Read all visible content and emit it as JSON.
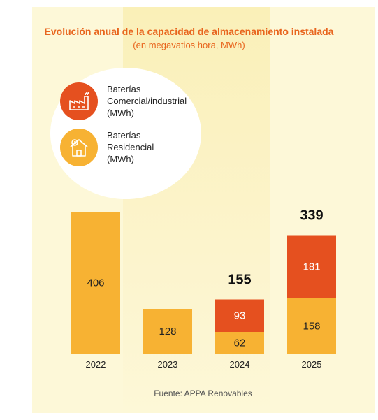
{
  "header": {
    "title": "Evolución anual de la capacidad de almacenamiento instalada",
    "subtitle": "(en megavatios hora, MWh)"
  },
  "legend": [
    {
      "label": "Baterías\nComercial/industrial\n(MWh)",
      "color": "#e5501f",
      "icon": "factory-icon"
    },
    {
      "label": "Baterías\nResidencial\n(MWh)",
      "color": "#f7b233",
      "icon": "house-icon"
    }
  ],
  "footer": {
    "source": "Fuente: APPA Renovables"
  },
  "colors": {
    "residencial": "#f7b233",
    "comercial": "#e5501f",
    "accent": "#e8651e"
  },
  "chart_data": {
    "type": "bar",
    "stacked": true,
    "categories": [
      "2022",
      "2023",
      "2024",
      "2025"
    ],
    "series": [
      {
        "name": "Baterías Residencial (MWh)",
        "values": [
          406,
          128,
          62,
          158
        ]
      },
      {
        "name": "Baterías Comercial/industrial (MWh)",
        "values": [
          0,
          0,
          93,
          181
        ]
      }
    ],
    "totals": [
      "",
      "",
      "155",
      "339"
    ],
    "title": "Evolución anual de la capacidad de almacenamiento instalada",
    "subtitle": "(en megavatios hora, MWh)",
    "legend_position": "top-left"
  }
}
